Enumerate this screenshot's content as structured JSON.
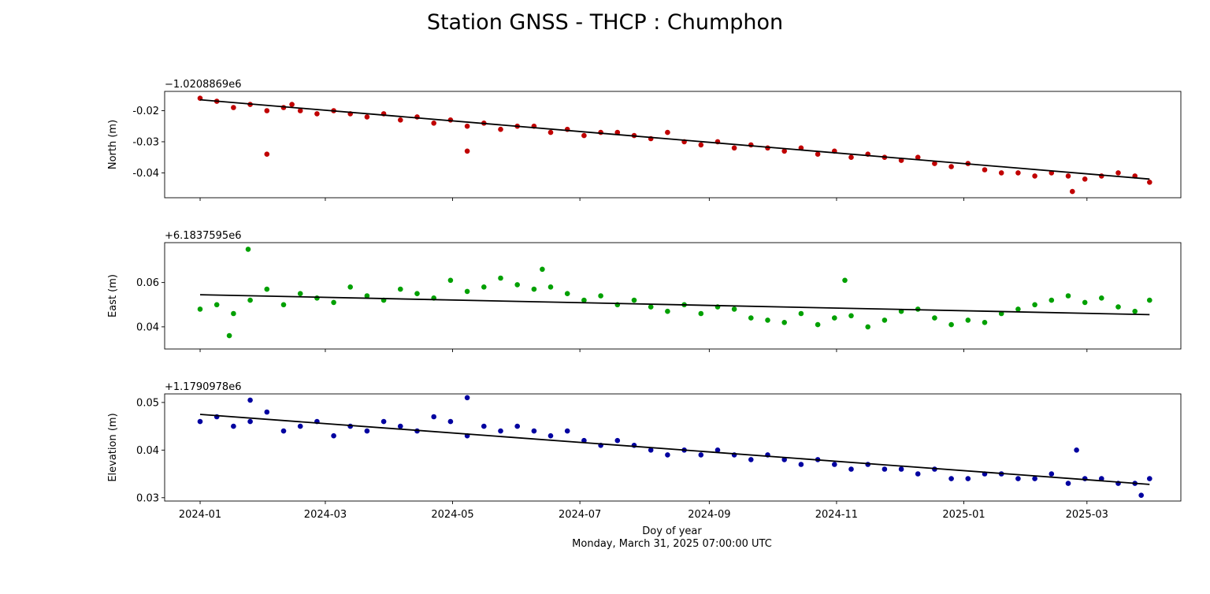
{
  "title": "Station GNSS - THCP : Chumphon",
  "xlabel": "Doy of year",
  "subtitle": "Monday, March 31, 2025 07:00:00 UTC",
  "x_ticks": [
    "2024-01",
    "2024-03",
    "2024-05",
    "2024-07",
    "2024-09",
    "2024-11",
    "2025-01",
    "2025-03"
  ],
  "chart_data": [
    {
      "type": "scatter",
      "panel": "north",
      "ylabel": "North (m)",
      "offset_label": "−1.0208869e6",
      "color": "#c00000",
      "x_range": [
        "2023-12-15",
        "2025-04-15"
      ],
      "ylim": [
        -0.048,
        -0.0138
      ],
      "y_ticks": [
        "-0.02",
        "-0.03",
        "-0.04"
      ],
      "y_tick_values": [
        -0.02,
        -0.03,
        -0.04
      ],
      "trend": {
        "start": [
          "2024-01-01",
          -0.0165
        ],
        "end": [
          "2025-03-31",
          -0.042
        ]
      },
      "x": [
        "2024-01-01",
        "2024-01-09",
        "2024-01-17",
        "2024-01-25",
        "2024-02-02",
        "2024-02-10",
        "2024-02-18",
        "2024-02-26",
        "2024-03-05",
        "2024-03-13",
        "2024-03-21",
        "2024-03-29",
        "2024-04-06",
        "2024-04-14",
        "2024-04-22",
        "2024-04-30",
        "2024-05-08",
        "2024-05-16",
        "2024-05-24",
        "2024-06-01",
        "2024-06-09",
        "2024-06-17",
        "2024-06-25",
        "2024-07-03",
        "2024-07-11",
        "2024-07-19",
        "2024-07-27",
        "2024-08-04",
        "2024-08-12",
        "2024-08-20",
        "2024-08-28",
        "2024-09-05",
        "2024-09-13",
        "2024-09-21",
        "2024-09-29",
        "2024-10-07",
        "2024-10-15",
        "2024-10-23",
        "2024-10-31",
        "2024-11-08",
        "2024-11-16",
        "2024-11-24",
        "2024-12-02",
        "2024-12-10",
        "2024-12-18",
        "2024-12-26",
        "2025-01-03",
        "2025-01-11",
        "2025-01-19",
        "2025-01-27",
        "2025-02-04",
        "2025-02-12",
        "2025-02-20",
        "2025-02-28",
        "2025-03-08",
        "2025-03-16",
        "2025-03-24",
        "2025-03-31",
        "2024-02-02",
        "2024-05-08",
        "2024-02-14",
        "2025-02-22"
      ],
      "y": [
        -0.016,
        -0.017,
        -0.019,
        -0.018,
        -0.02,
        -0.019,
        -0.02,
        -0.021,
        -0.02,
        -0.021,
        -0.022,
        -0.021,
        -0.023,
        -0.022,
        -0.024,
        -0.023,
        -0.025,
        -0.024,
        -0.026,
        -0.025,
        -0.025,
        -0.027,
        -0.026,
        -0.028,
        -0.027,
        -0.027,
        -0.028,
        -0.029,
        -0.027,
        -0.03,
        -0.031,
        -0.03,
        -0.032,
        -0.031,
        -0.032,
        -0.033,
        -0.032,
        -0.034,
        -0.033,
        -0.035,
        -0.034,
        -0.035,
        -0.036,
        -0.035,
        -0.037,
        -0.038,
        -0.037,
        -0.039,
        -0.04,
        -0.04,
        -0.041,
        -0.04,
        -0.041,
        -0.042,
        -0.041,
        -0.04,
        -0.041,
        -0.043,
        -0.034,
        -0.033,
        -0.018,
        -0.046
      ]
    },
    {
      "type": "scatter",
      "panel": "east",
      "ylabel": "East (m)",
      "offset_label": "+6.1837595e6",
      "color": "#00a000",
      "x_range": [
        "2023-12-15",
        "2025-04-15"
      ],
      "ylim": [
        0.03,
        0.078
      ],
      "y_ticks": [
        "0.06",
        "0.04"
      ],
      "y_tick_values": [
        0.06,
        0.04
      ],
      "trend": {
        "start": [
          "2024-01-01",
          0.0545
        ],
        "end": [
          "2025-03-31",
          0.0455
        ]
      },
      "x": [
        "2024-01-01",
        "2024-01-09",
        "2024-01-17",
        "2024-01-25",
        "2024-02-02",
        "2024-02-10",
        "2024-02-18",
        "2024-02-26",
        "2024-03-05",
        "2024-03-13",
        "2024-03-21",
        "2024-03-29",
        "2024-04-06",
        "2024-04-14",
        "2024-04-22",
        "2024-04-30",
        "2024-05-08",
        "2024-05-16",
        "2024-05-24",
        "2024-06-01",
        "2024-06-09",
        "2024-06-17",
        "2024-06-25",
        "2024-07-03",
        "2024-07-11",
        "2024-07-19",
        "2024-07-27",
        "2024-08-04",
        "2024-08-12",
        "2024-08-20",
        "2024-08-28",
        "2024-09-05",
        "2024-09-13",
        "2024-09-21",
        "2024-09-29",
        "2024-10-07",
        "2024-10-15",
        "2024-10-23",
        "2024-10-31",
        "2024-11-08",
        "2024-11-16",
        "2024-11-24",
        "2024-12-02",
        "2024-12-10",
        "2024-12-18",
        "2024-12-26",
        "2025-01-03",
        "2025-01-11",
        "2025-01-19",
        "2025-01-27",
        "2025-02-04",
        "2025-02-12",
        "2025-02-20",
        "2025-02-28",
        "2025-03-08",
        "2025-03-16",
        "2025-03-24",
        "2025-03-31",
        "2024-01-24",
        "2024-06-13",
        "2024-11-05",
        "2024-01-15"
      ],
      "y": [
        0.048,
        0.05,
        0.046,
        0.052,
        0.057,
        0.05,
        0.055,
        0.053,
        0.051,
        0.058,
        0.054,
        0.052,
        0.057,
        0.055,
        0.053,
        0.061,
        0.056,
        0.058,
        0.062,
        0.059,
        0.057,
        0.058,
        0.055,
        0.052,
        0.054,
        0.05,
        0.052,
        0.049,
        0.047,
        0.05,
        0.046,
        0.049,
        0.048,
        0.044,
        0.043,
        0.042,
        0.046,
        0.041,
        0.044,
        0.045,
        0.04,
        0.043,
        0.047,
        0.048,
        0.044,
        0.041,
        0.043,
        0.042,
        0.046,
        0.048,
        0.05,
        0.052,
        0.054,
        0.051,
        0.053,
        0.049,
        0.047,
        0.052,
        0.075,
        0.066,
        0.061,
        0.036
      ]
    },
    {
      "type": "scatter",
      "panel": "elevation",
      "ylabel": "Elevation (m)",
      "offset_label": "+1.1790978e6",
      "color": "#0000a0",
      "x_range": [
        "2023-12-15",
        "2025-04-15"
      ],
      "ylim": [
        0.0293,
        0.0518
      ],
      "y_ticks": [
        "0.05",
        "0.04",
        "0.03"
      ],
      "y_tick_values": [
        0.05,
        0.04,
        0.03
      ],
      "trend": {
        "start": [
          "2024-01-01",
          0.0475
        ],
        "end": [
          "2025-03-31",
          0.0328
        ]
      },
      "x": [
        "2024-01-01",
        "2024-01-09",
        "2024-01-17",
        "2024-01-25",
        "2024-02-02",
        "2024-02-10",
        "2024-02-18",
        "2024-02-26",
        "2024-03-05",
        "2024-03-13",
        "2024-03-21",
        "2024-03-29",
        "2024-04-06",
        "2024-04-14",
        "2024-04-22",
        "2024-04-30",
        "2024-05-08",
        "2024-05-16",
        "2024-05-24",
        "2024-06-01",
        "2024-06-09",
        "2024-06-17",
        "2024-06-25",
        "2024-07-03",
        "2024-07-11",
        "2024-07-19",
        "2024-07-27",
        "2024-08-04",
        "2024-08-12",
        "2024-08-20",
        "2024-08-28",
        "2024-09-05",
        "2024-09-13",
        "2024-09-21",
        "2024-09-29",
        "2024-10-07",
        "2024-10-15",
        "2024-10-23",
        "2024-10-31",
        "2024-11-08",
        "2024-11-16",
        "2024-11-24",
        "2024-12-02",
        "2024-12-10",
        "2024-12-18",
        "2024-12-26",
        "2025-01-03",
        "2025-01-11",
        "2025-01-19",
        "2025-01-27",
        "2025-02-04",
        "2025-02-12",
        "2025-02-20",
        "2025-02-28",
        "2025-03-08",
        "2025-03-16",
        "2025-03-24",
        "2025-03-31",
        "2024-01-25",
        "2024-05-08",
        "2025-02-24",
        "2025-03-27"
      ],
      "y": [
        0.046,
        0.047,
        0.045,
        0.046,
        0.048,
        0.044,
        0.045,
        0.046,
        0.043,
        0.045,
        0.044,
        0.046,
        0.045,
        0.044,
        0.047,
        0.046,
        0.043,
        0.045,
        0.044,
        0.045,
        0.044,
        0.043,
        0.044,
        0.042,
        0.041,
        0.042,
        0.041,
        0.04,
        0.039,
        0.04,
        0.039,
        0.04,
        0.039,
        0.038,
        0.039,
        0.038,
        0.037,
        0.038,
        0.037,
        0.036,
        0.037,
        0.036,
        0.036,
        0.035,
        0.036,
        0.034,
        0.034,
        0.035,
        0.035,
        0.034,
        0.034,
        0.035,
        0.033,
        0.034,
        0.034,
        0.033,
        0.033,
        0.034,
        0.0505,
        0.051,
        0.04,
        0.0305
      ]
    }
  ]
}
